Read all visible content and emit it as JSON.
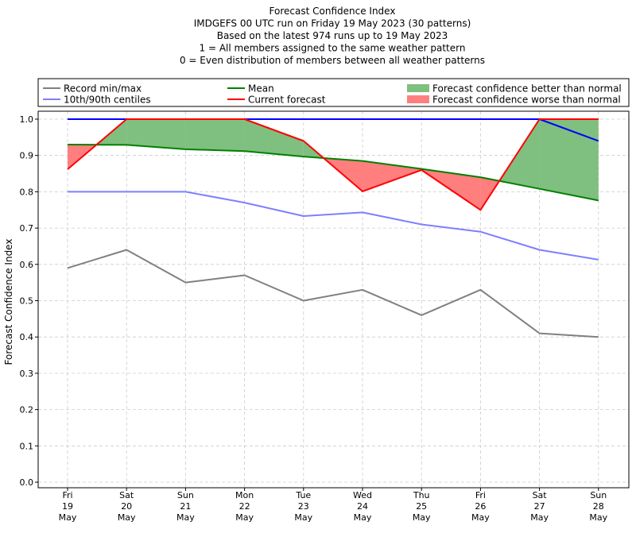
{
  "chart_data": {
    "type": "line",
    "title_lines": [
      "Forecast Confidence Index",
      "IMDGEFS 00 UTC run on Friday 19 May 2023 (30 patterns)",
      "Based on the latest 974 runs up to 19 May 2023",
      "1 = All members assigned to the same weather pattern",
      "0 = Even distribution of members between all weather patterns"
    ],
    "ylabel": "Forecast Confidence Index",
    "xlabel": "",
    "ylim": [
      0,
      1
    ],
    "yticks": [
      "0.0",
      "0.1",
      "0.2",
      "0.3",
      "0.4",
      "0.5",
      "0.6",
      "0.7",
      "0.8",
      "0.9",
      "1.0"
    ],
    "grid": true,
    "legend_position": "top",
    "categories": [
      [
        "Fri",
        "19",
        "May"
      ],
      [
        "Sat",
        "20",
        "May"
      ],
      [
        "Sun",
        "21",
        "May"
      ],
      [
        "Mon",
        "22",
        "May"
      ],
      [
        "Tue",
        "23",
        "May"
      ],
      [
        "Wed",
        "24",
        "May"
      ],
      [
        "Thu",
        "25",
        "May"
      ],
      [
        "Fri",
        "26",
        "May"
      ],
      [
        "Sat",
        "27",
        "May"
      ],
      [
        "Sun",
        "28",
        "May"
      ]
    ],
    "legend": [
      {
        "label": "Record min/max",
        "kind": "line",
        "color": "#808080"
      },
      {
        "label": "Mean",
        "kind": "line",
        "color": "#008000"
      },
      {
        "label": "Forecast confidence better than normal",
        "kind": "patch",
        "color": "#7fbf7f"
      },
      {
        "label": "10th/90th centiles",
        "kind": "line",
        "color": "#7f7fff"
      },
      {
        "label": "Current forecast",
        "kind": "line",
        "color": "#ff0000"
      },
      {
        "label": "Forecast confidence worse than normal",
        "kind": "patch",
        "color": "#ff7f7f"
      }
    ],
    "series": [
      {
        "name": "Record min/max",
        "role": "record_min",
        "color": "#808080",
        "values": [
          0.59,
          0.64,
          0.55,
          0.57,
          0.5,
          0.53,
          0.46,
          0.53,
          0.41,
          0.4
        ]
      },
      {
        "name": "Record min/max",
        "role": "record_max",
        "color": "#0000ff",
        "values": [
          1.0,
          1.0,
          1.0,
          1.0,
          1.0,
          1.0,
          1.0,
          1.0,
          1.0,
          0.94
        ]
      },
      {
        "name": "10th/90th centiles",
        "role": "p10",
        "color": "#7f7fff",
        "values": [
          0.8,
          0.8,
          0.8,
          0.77,
          0.733,
          0.743,
          0.71,
          0.69,
          0.64,
          0.613
        ]
      },
      {
        "name": "10th/90th centiles",
        "role": "p90",
        "color": "#7f7fff",
        "values": [
          1.0,
          1.0,
          1.0,
          1.0,
          1.0,
          1.0,
          1.0,
          1.0,
          1.0,
          1.0
        ]
      },
      {
        "name": "Mean",
        "role": "mean",
        "color": "#008000",
        "values": [
          0.93,
          0.929,
          0.917,
          0.912,
          0.897,
          0.885,
          0.863,
          0.84,
          0.808,
          0.776
        ]
      },
      {
        "name": "Current forecast",
        "role": "current",
        "color": "#ff0000",
        "values": [
          0.862,
          1.0,
          1.0,
          1.0,
          0.94,
          0.801,
          0.86,
          0.75,
          1.0,
          1.0
        ]
      }
    ],
    "colors": {
      "better": "#7fbf7f",
      "worse": "#ff7f7f",
      "grid": "#cccccc"
    }
  }
}
